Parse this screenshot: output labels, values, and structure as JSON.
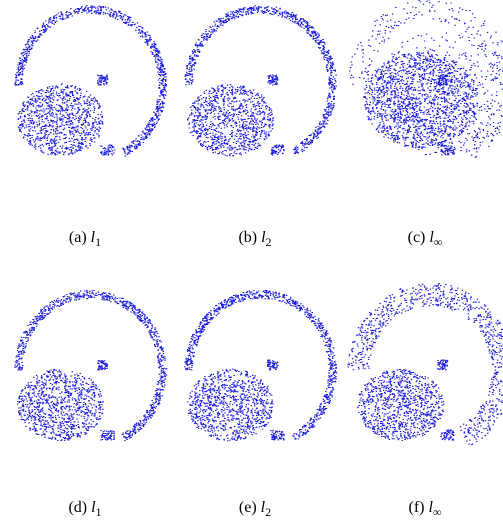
{
  "figure": {
    "panels": [
      {
        "tag": "(a)",
        "symbol": "l",
        "subscript": "1"
      },
      {
        "tag": "(b)",
        "symbol": "l",
        "subscript": "2"
      },
      {
        "tag": "(c)",
        "symbol": "l",
        "subscript": "∞"
      },
      {
        "tag": "(d)",
        "symbol": "l",
        "subscript": "1"
      },
      {
        "tag": "(e)",
        "symbol": "l",
        "subscript": "2"
      },
      {
        "tag": "(f)",
        "symbol": "l",
        "subscript": "∞"
      }
    ]
  }
}
